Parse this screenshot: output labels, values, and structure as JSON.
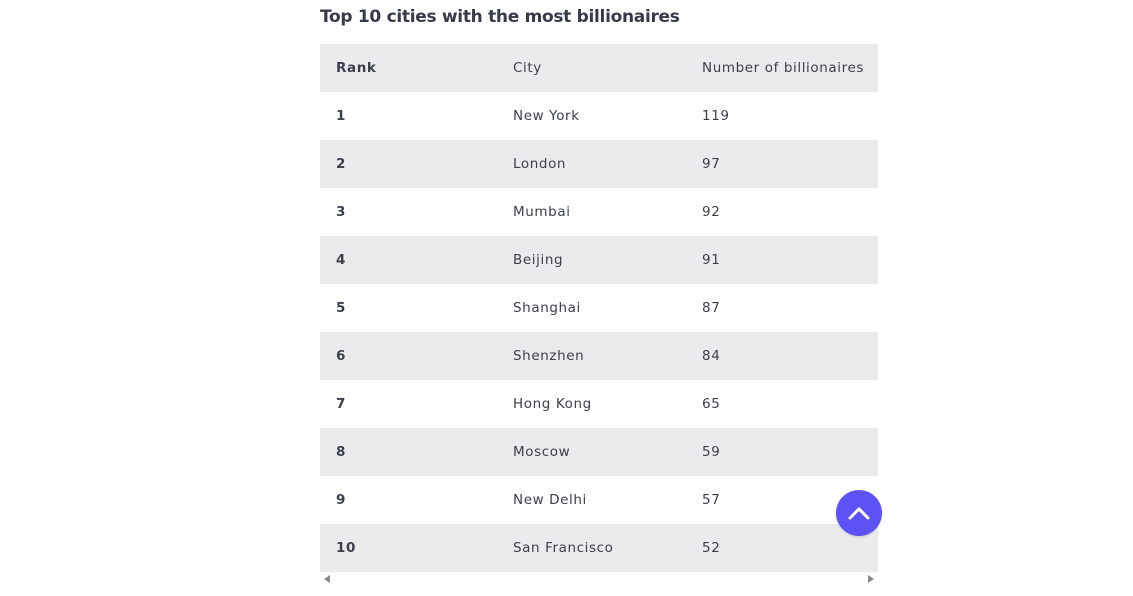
{
  "title": "Top 10 cities with the most billionaires",
  "table": {
    "headers": [
      "Rank",
      "City",
      "Number of billionaires"
    ],
    "rows": [
      [
        "1",
        "New York",
        "119"
      ],
      [
        "2",
        "London",
        "97"
      ],
      [
        "3",
        "Mumbai",
        "92"
      ],
      [
        "4",
        "Beijing",
        "91"
      ],
      [
        "5",
        "Shanghai",
        "87"
      ],
      [
        "6",
        "Shenzhen",
        "84"
      ],
      [
        "7",
        "Hong Kong",
        "65"
      ],
      [
        "8",
        "Moscow",
        "59"
      ],
      [
        "9",
        "New Delhi",
        "57"
      ],
      [
        "10",
        "San Francisco",
        "52"
      ]
    ]
  },
  "colors": {
    "accent": "#5c52f6",
    "header_bg": "#eaebed",
    "text": "#3b3f4a"
  },
  "icons": {
    "scroll_top": "chevron-up-icon",
    "scroll_left": "arrow-left-icon",
    "scroll_right": "arrow-right-icon"
  }
}
